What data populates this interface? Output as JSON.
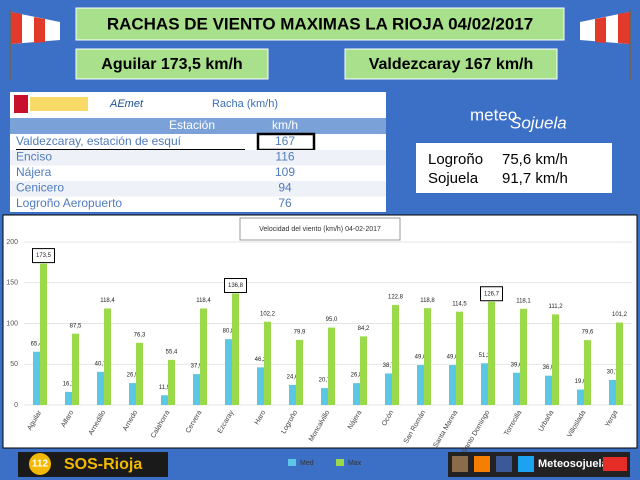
{
  "header": {
    "title": "RACHAS DE VIENTO MAXIMAS LA RIOJA 04/02/2017",
    "left": "Aguilar 173,5 km/h",
    "right": "Valdezcaray 167 km/h"
  },
  "table": {
    "logo": "AEmet",
    "caption": "Racha (km/h)",
    "columns": [
      "Estación",
      "km/h"
    ],
    "rows": [
      [
        "Valdezcaray, estación de esquí",
        167
      ],
      [
        "Enciso",
        116
      ],
      [
        "Nájera",
        109
      ],
      [
        "Cenicero",
        94
      ],
      [
        "Logroño Aeropuerto",
        76
      ]
    ]
  },
  "brand": {
    "top": "meteo",
    "bottom": "Sojuela"
  },
  "stations": [
    [
      "Logroño",
      "75,6 km/h"
    ],
    [
      "Sojuela",
      "91,7 km/h"
    ]
  ],
  "footer": {
    "emergency": "112",
    "sos": "SOS-Rioja",
    "meteo": "Meteosojuela"
  },
  "chart_data": {
    "type": "bar",
    "title": "Velocidad del viento (km/h) 04-02-2017",
    "categories": [
      "Aguilar",
      "Alfaro",
      "Arnedillo",
      "Arnedo",
      "Calahorra",
      "Cervera",
      "Ezcaray",
      "Haro",
      "Logroño",
      "Moncalvillo",
      "Nájera",
      "Ocón",
      "San Román",
      "Santa Marina",
      "Santo Domingo",
      "Torrecilla",
      "Urbaña",
      "Villoslada",
      "Yerga"
    ],
    "series": [
      {
        "name": "Med",
        "color": "#5cc6e6",
        "values": [
          65.4,
          16.1,
          40.7,
          26.9,
          11.9,
          37.9,
          80.8,
          46.2,
          24.6,
          20.7,
          26.8,
          38.7,
          49.0,
          49.0,
          51.2,
          39.6,
          36.0,
          19.0,
          30.7
        ],
        "value_labels": [
          "65,4",
          "16,1",
          "40,7",
          "26,9",
          "11,9",
          "37,9",
          "80,8",
          "46,2",
          "24,6",
          "20,7",
          "26,8",
          "38,7",
          "49,0",
          "49,0",
          "51,2",
          "39,6",
          "36,0",
          "19,0",
          "30,7"
        ]
      },
      {
        "name": "Max",
        "color": "#9ada4a",
        "values": [
          173.5,
          87.5,
          118.4,
          76.3,
          55.4,
          118.4,
          136.8,
          102.2,
          79.9,
          95.0,
          84.2,
          122.8,
          118.8,
          114.5,
          126.7,
          118.1,
          111.2,
          79.6,
          101.2
        ],
        "value_labels": [
          "173,5",
          "87,5",
          "118,4",
          "76,3",
          "55,4",
          "118,4",
          "136,8",
          "102,2",
          "79,9",
          "95,0",
          "84,2",
          "122,8",
          "118,8",
          "114,5",
          "126,7",
          "118,1",
          "111,2",
          "79,6",
          "101,2"
        ],
        "boxed": [
          0,
          6,
          14
        ]
      }
    ],
    "ylim": [
      0,
      200
    ],
    "yticks": [
      0,
      50,
      100,
      150,
      200
    ],
    "grid": true
  }
}
